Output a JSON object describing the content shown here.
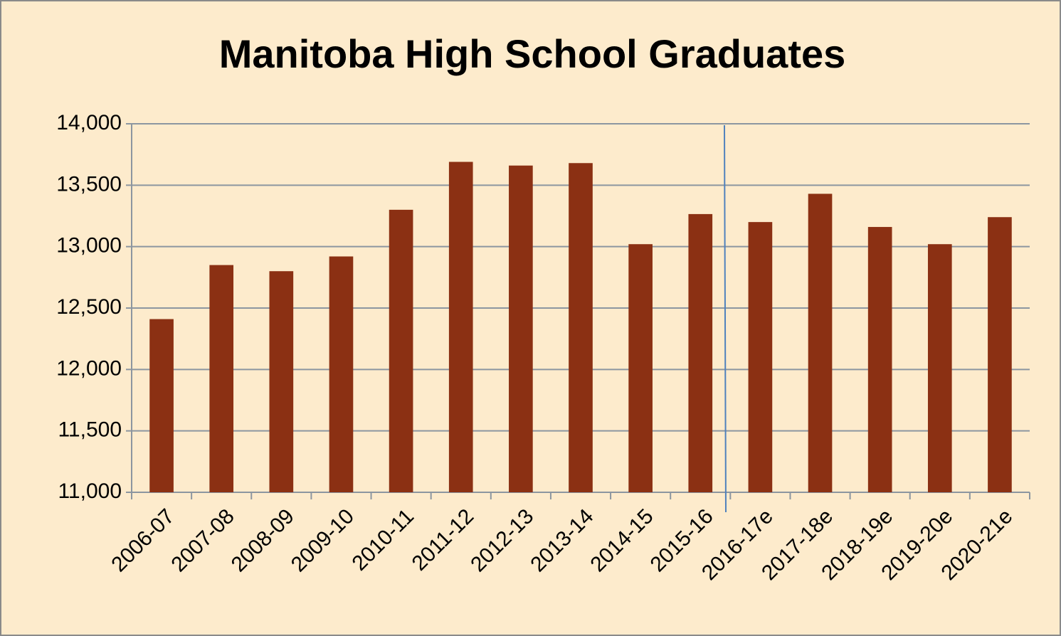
{
  "chart_data": {
    "type": "bar",
    "title": "Manitoba High School Graduates",
    "categories": [
      "2006-07",
      "2007-08",
      "2008-09",
      "2009-10",
      "2010-11",
      "2011-12",
      "2012-13",
      "2013-14",
      "2014-15",
      "2015-16",
      "2016-17e",
      "2017-18e",
      "2018-19e",
      "2019-20e",
      "2020-21e"
    ],
    "values": [
      12410,
      12850,
      12800,
      12920,
      13300,
      13690,
      13660,
      13680,
      13020,
      13265,
      13200,
      13430,
      13160,
      13020,
      13240
    ],
    "color": "#8b3013",
    "ylim": [
      11000,
      14000
    ],
    "yticks": [
      {
        "value": 11000,
        "label": "11,000"
      },
      {
        "value": 11500,
        "label": "11,500"
      },
      {
        "value": 12000,
        "label": "12,000"
      },
      {
        "value": 12500,
        "label": "12,500"
      },
      {
        "value": 13000,
        "label": "13,000"
      },
      {
        "value": 13500,
        "label": "13,500"
      },
      {
        "value": 14000,
        "label": "14,000"
      }
    ],
    "grid": true
  }
}
